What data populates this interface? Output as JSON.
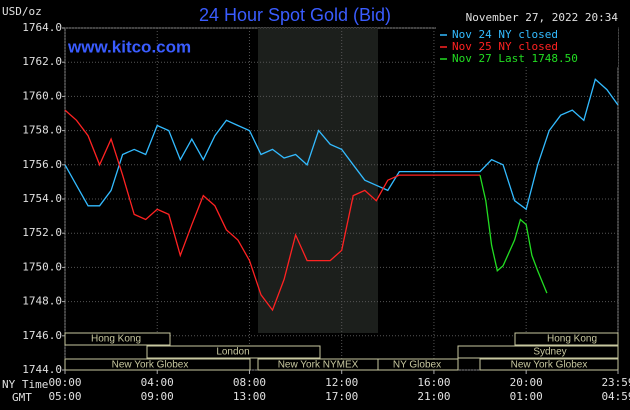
{
  "chart_data": {
    "type": "line",
    "title": "24 Hour Spot Gold (Bid)",
    "watermark": "www.kitco.com",
    "y_label": "USD/oz",
    "timestamp": "November 27, 2022 20:34",
    "x_label": "NY Time",
    "x2_label": "GMT",
    "xlim": [
      0,
      23.983
    ],
    "xticks": [
      {
        "value": 0,
        "label": "00:00"
      },
      {
        "value": 4,
        "label": "04:00"
      },
      {
        "value": 8,
        "label": "08:00"
      },
      {
        "value": 12,
        "label": "12:00"
      },
      {
        "value": 16,
        "label": "16:00"
      },
      {
        "value": 20,
        "label": "20:00"
      },
      {
        "value": 23.983,
        "label": "23:59"
      }
    ],
    "x2ticks": [
      {
        "value": 0,
        "label": "05:00"
      },
      {
        "value": 4,
        "label": "09:00"
      },
      {
        "value": 8,
        "label": "13:00"
      },
      {
        "value": 12,
        "label": "17:00"
      },
      {
        "value": 16,
        "label": "21:00"
      },
      {
        "value": 20,
        "label": "01:00"
      },
      {
        "value": 23.983,
        "label": "04:59"
      }
    ],
    "ylim": [
      1744,
      1764
    ],
    "yticks": [
      {
        "value": 1744,
        "label": "1744.0"
      },
      {
        "value": 1746,
        "label": "1746.0"
      },
      {
        "value": 1748,
        "label": "1748.0"
      },
      {
        "value": 1750,
        "label": "1750.0"
      },
      {
        "value": 1752,
        "label": "1752.0"
      },
      {
        "value": 1754,
        "label": "1754.0"
      },
      {
        "value": 1756,
        "label": "1756.0"
      },
      {
        "value": 1758,
        "label": "1758.0"
      },
      {
        "value": 1760,
        "label": "1760.0"
      },
      {
        "value": 1762,
        "label": "1762.0"
      },
      {
        "value": 1764,
        "label": "1764.0"
      }
    ],
    "grid": true,
    "sessions": [
      "Hong Kong",
      "Hong Kong",
      "London",
      "Sydney",
      "New York Globex",
      "New York NYMEX",
      "NY Globex",
      "New York Globex"
    ],
    "series": [
      {
        "name": "Nov 24 NY closed",
        "color": "#33bbff",
        "x": [
          0,
          0.5,
          1,
          1.5,
          2,
          2.5,
          3,
          3.5,
          4,
          4.5,
          5,
          5.5,
          6,
          6.5,
          7,
          7.5,
          8,
          8.5,
          9,
          9.5,
          10,
          10.5,
          11,
          11.5,
          12,
          12.5,
          13,
          13.5,
          14,
          14.5,
          18,
          18.5,
          19,
          19.5,
          20,
          20.5,
          21,
          21.5,
          22,
          22.5,
          23,
          23.5,
          23.98
        ],
        "values": [
          1756.0,
          1754.8,
          1753.6,
          1753.6,
          1754.5,
          1756.6,
          1756.9,
          1756.6,
          1758.3,
          1758.0,
          1756.3,
          1757.5,
          1756.3,
          1757.7,
          1758.6,
          1758.3,
          1758.0,
          1756.6,
          1756.9,
          1756.4,
          1756.6,
          1756.0,
          1758.0,
          1757.2,
          1756.9,
          1756.0,
          1755.1,
          1754.8,
          1754.5,
          1755.6,
          1755.6,
          1756.3,
          1756.0,
          1753.9,
          1753.4,
          1756.0,
          1758.0,
          1758.9,
          1759.2,
          1758.6,
          1761.0,
          1760.4,
          1759.5
        ]
      },
      {
        "name": "Nov 25 NY closed",
        "color": "#ff2222",
        "x": [
          0,
          0.5,
          1,
          1.5,
          2,
          2.5,
          3,
          3.5,
          4,
          4.5,
          5,
          5.5,
          6,
          6.5,
          7,
          7.5,
          8,
          8.5,
          9,
          9.5,
          10,
          10.5,
          11,
          11.5,
          12,
          12.5,
          13,
          13.5,
          14,
          14.5,
          18
        ],
        "values": [
          1759.2,
          1758.6,
          1757.7,
          1756.0,
          1757.5,
          1755.4,
          1753.1,
          1752.8,
          1753.4,
          1753.1,
          1750.7,
          1752.5,
          1754.2,
          1753.6,
          1752.2,
          1751.6,
          1750.4,
          1748.4,
          1747.5,
          1749.3,
          1751.9,
          1750.4,
          1750.4,
          1750.4,
          1751.0,
          1754.2,
          1754.5,
          1753.9,
          1755.1,
          1755.4,
          1755.4
        ]
      },
      {
        "name": "Nov 27 Last 1748.50",
        "color": "#22dd22",
        "x": [
          18,
          18.25,
          18.5,
          18.75,
          19,
          19.5,
          19.75,
          20,
          20.25,
          20.5,
          20.9
        ],
        "values": [
          1755.4,
          1753.9,
          1751.3,
          1749.8,
          1750.1,
          1751.6,
          1752.8,
          1752.5,
          1750.7,
          1749.8,
          1748.5
        ]
      }
    ]
  }
}
